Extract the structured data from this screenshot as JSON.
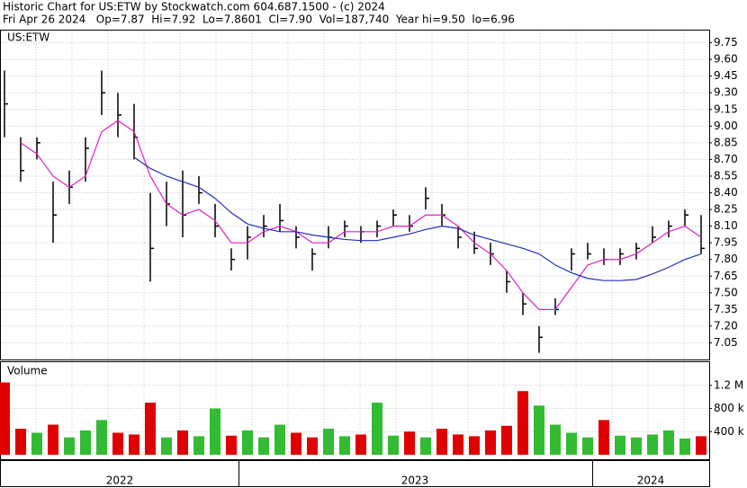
{
  "header": {
    "line1": "Historic Chart for US:ETW by Stockwatch.com 604.687.1500 - (c) 2024",
    "line2": "Fri Apr 26 2024   Op=7.87  Hi=7.92  Lo=7.8601  Cl=7.90  Vol=187,740  Year hi=9.50  lo=6.96"
  },
  "year_labels": [
    "2022",
    "2023",
    "2024"
  ],
  "chart_data": [
    {
      "type": "hlc",
      "label": "US:ETW",
      "color": "#000000",
      "high": [
        9.5,
        8.9,
        8.9,
        8.5,
        8.6,
        8.9,
        9.5,
        9.3,
        9.2,
        8.4,
        8.5,
        8.6,
        8.55,
        8.3,
        7.9,
        8.1,
        8.2,
        8.3,
        8.1,
        7.9,
        8.1,
        8.15,
        8.1,
        8.15,
        8.25,
        8.2,
        8.45,
        8.3,
        8.1,
        8.05,
        7.95,
        7.7,
        7.5,
        7.2,
        7.45,
        7.9,
        7.95,
        7.9,
        7.9,
        7.95,
        8.1,
        8.15,
        8.25,
        8.2
      ],
      "low": [
        8.9,
        8.5,
        8.7,
        7.95,
        8.3,
        8.5,
        9.1,
        8.9,
        8.7,
        7.6,
        8.1,
        8.0,
        8.3,
        8.0,
        7.7,
        7.8,
        8.0,
        8.05,
        7.9,
        7.7,
        7.9,
        8.0,
        7.95,
        8.0,
        8.1,
        8.05,
        8.25,
        8.1,
        7.9,
        7.85,
        7.75,
        7.5,
        7.3,
        6.96,
        7.3,
        7.7,
        7.8,
        7.75,
        7.75,
        7.8,
        7.95,
        8.0,
        8.1,
        7.85
      ],
      "close": [
        9.2,
        8.6,
        8.85,
        8.2,
        8.45,
        8.8,
        9.3,
        9.1,
        8.9,
        7.9,
        8.3,
        8.2,
        8.4,
        8.1,
        7.8,
        8.0,
        8.1,
        8.15,
        8.0,
        7.85,
        8.0,
        8.1,
        8.05,
        8.1,
        8.2,
        8.1,
        8.35,
        8.2,
        8.0,
        7.9,
        7.85,
        7.6,
        7.4,
        7.1,
        7.35,
        7.85,
        7.85,
        7.8,
        7.85,
        7.9,
        8.0,
        8.1,
        8.2,
        7.9
      ],
      "lines": [
        {
          "color": "#e020c0",
          "values": [
            null,
            8.85,
            8.75,
            8.55,
            8.45,
            8.55,
            8.95,
            9.05,
            8.95,
            8.55,
            8.3,
            8.2,
            8.25,
            8.15,
            7.95,
            7.95,
            8.05,
            8.1,
            8.05,
            7.95,
            7.95,
            8.05,
            8.05,
            8.05,
            8.1,
            8.1,
            8.2,
            8.2,
            8.1,
            7.95,
            7.85,
            7.7,
            7.5,
            7.35,
            7.35,
            7.55,
            7.75,
            7.8,
            7.8,
            7.85,
            7.95,
            8.05,
            8.1,
            8.0
          ]
        },
        {
          "color": "#2030c0",
          "values": [
            null,
            null,
            null,
            null,
            null,
            null,
            null,
            null,
            8.72,
            8.62,
            8.55,
            8.5,
            8.45,
            8.35,
            8.22,
            8.12,
            8.08,
            8.05,
            8.05,
            8.02,
            8.0,
            7.98,
            7.97,
            7.97,
            8.0,
            8.03,
            8.07,
            8.1,
            8.08,
            8.02,
            7.98,
            7.94,
            7.9,
            7.85,
            7.75,
            7.68,
            7.63,
            7.61,
            7.61,
            7.62,
            7.67,
            7.73,
            7.8,
            7.85
          ]
        }
      ],
      "ylim": [
        6.9,
        9.86
      ],
      "yticks": [
        9.75,
        {
          "value": 9.6,
          "label": "9.60"
        },
        9.45,
        {
          "value": 9.3,
          "label": "9.30"
        },
        9.15,
        {
          "value": 9.0,
          "label": "9.00"
        },
        8.85,
        {
          "value": 8.7,
          "label": "8.70"
        },
        8.55,
        {
          "value": 8.4,
          "label": "8.40"
        },
        8.25,
        {
          "value": 8.1,
          "label": "8.10"
        },
        7.95,
        {
          "value": 7.8,
          "label": "7.80"
        },
        7.65,
        {
          "value": 7.5,
          "label": "7.50"
        },
        7.35,
        {
          "value": 7.2,
          "label": "7.20"
        },
        7.05
      ],
      "grid": true
    },
    {
      "type": "bar",
      "label": "Volume",
      "values": [
        1250000,
        450000,
        380000,
        520000,
        300000,
        420000,
        600000,
        380000,
        350000,
        900000,
        300000,
        420000,
        320000,
        800000,
        330000,
        420000,
        300000,
        520000,
        380000,
        300000,
        450000,
        320000,
        350000,
        900000,
        330000,
        400000,
        300000,
        450000,
        350000,
        320000,
        420000,
        500000,
        1100000,
        850000,
        520000,
        380000,
        300000,
        600000,
        330000,
        300000,
        350000,
        420000,
        280000,
        320000
      ],
      "colors": [
        "#e00000",
        "#e00000",
        "#33bb33",
        "#e00000",
        "#33bb33",
        "#33bb33",
        "#33bb33",
        "#e00000",
        "#e00000",
        "#e00000",
        "#33bb33",
        "#e00000",
        "#33bb33",
        "#33bb33",
        "#e00000",
        "#33bb33",
        "#33bb33",
        "#33bb33",
        "#e00000",
        "#e00000",
        "#33bb33",
        "#33bb33",
        "#e00000",
        "#33bb33",
        "#33bb33",
        "#e00000",
        "#33bb33",
        "#e00000",
        "#e00000",
        "#e00000",
        "#e00000",
        "#e00000",
        "#e00000",
        "#33bb33",
        "#33bb33",
        "#33bb33",
        "#33bb33",
        "#e00000",
        "#33bb33",
        "#33bb33",
        "#33bb33",
        "#33bb33",
        "#33bb33",
        "#e00000"
      ],
      "ylim": [
        0,
        1600000
      ],
      "yticks": [
        {
          "value": 1200000,
          "label": "1.2 M"
        },
        {
          "value": 800000,
          "label": "800 k"
        },
        {
          "value": 400000,
          "label": "400 k"
        }
      ],
      "grid": true
    }
  ]
}
